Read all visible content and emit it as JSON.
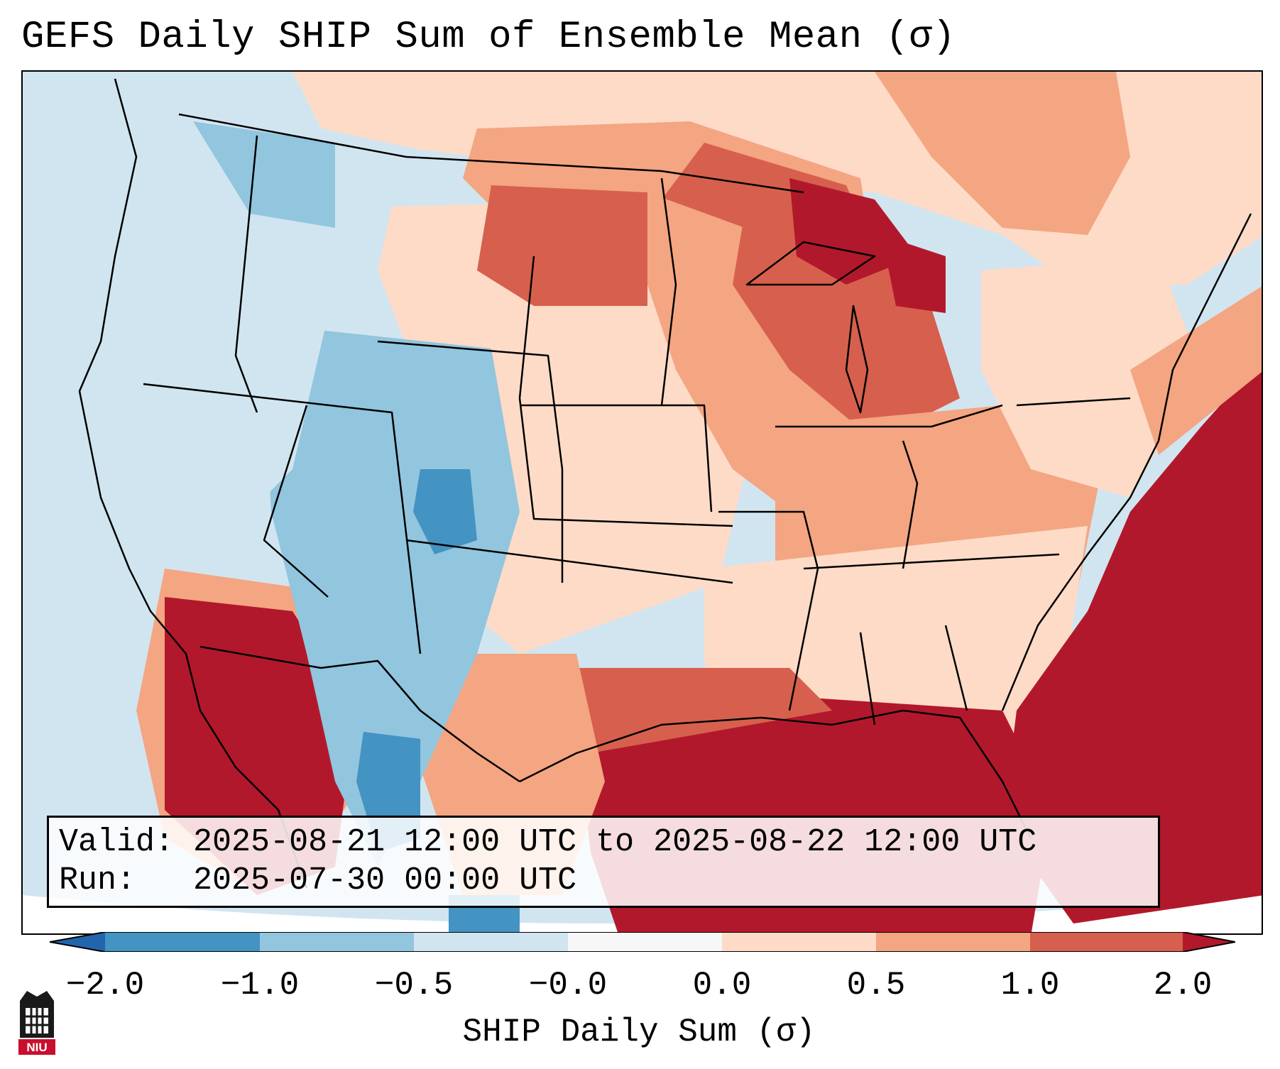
{
  "title": "GEFS Daily SHIP Sum of Ensemble Mean (σ)",
  "info": {
    "valid_label": "Valid:",
    "valid_value": "2025-08-21 12:00 UTC to 2025-08-22 12:00 UTC",
    "run_label": "Run:",
    "run_value": "2025-07-30 00:00 UTC"
  },
  "colorbar": {
    "label": "SHIP Daily Sum (σ)",
    "ticks": [
      "−2.0",
      "−1.0",
      "−0.5",
      "−0.0",
      "0.0",
      "0.5",
      "1.0",
      "2.0"
    ],
    "colors": [
      "#4393c3",
      "#92c5de",
      "#d1e5f0",
      "#f7f7f7",
      "#fddbc7",
      "#f4a582",
      "#d6604d",
      "#b2182b"
    ],
    "under_color": "#2166ac",
    "over_color": "#b2182b"
  },
  "logo": {
    "text": "NIU",
    "name": "niu-logo"
  },
  "map": {
    "regions": [
      {
        "name": "pacific-ocean",
        "color": "#d1e5f0"
      },
      {
        "name": "pacific-northwest",
        "color": "#d1e5f0"
      },
      {
        "name": "rockies-negative",
        "color": "#92c5de"
      },
      {
        "name": "colorado-core",
        "color": "#4393c3"
      },
      {
        "name": "great-plains",
        "color": "#fddbc7"
      },
      {
        "name": "upper-midwest",
        "color": "#f4a582"
      },
      {
        "name": "great-lakes",
        "color": "#d6604d"
      },
      {
        "name": "lake-superior",
        "color": "#b2182b"
      },
      {
        "name": "southeast",
        "color": "#fddbc7"
      },
      {
        "name": "gulf-of-mexico",
        "color": "#b2182b"
      },
      {
        "name": "atlantic-ocean",
        "color": "#b2182b"
      },
      {
        "name": "mexico-west",
        "color": "#b2182b"
      },
      {
        "name": "northeast",
        "color": "#fddbc7"
      },
      {
        "name": "quebec",
        "color": "#f4a582"
      }
    ]
  }
}
